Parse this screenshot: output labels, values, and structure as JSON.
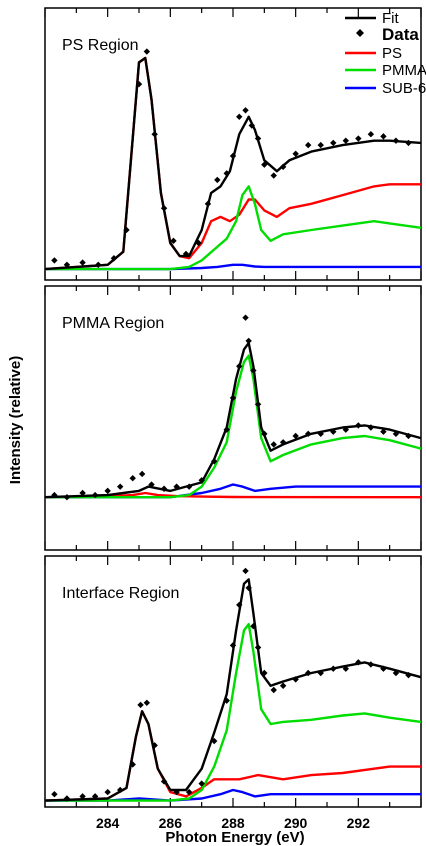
{
  "chart_data": {
    "type": "line",
    "xlabel": "Photon Energy (eV)",
    "ylabel": "Intensity (relative)",
    "xlim": [
      282,
      294
    ],
    "xticks": [
      284,
      286,
      288,
      290,
      292
    ],
    "legend": {
      "placement": "top-right",
      "entries": [
        {
          "name": "Fit",
          "color": "#000000",
          "style": "line"
        },
        {
          "name": "Data",
          "color": "#000000",
          "style": "marker"
        },
        {
          "name": "PS",
          "color": "#ff0000",
          "style": "line"
        },
        {
          "name": "PMMA",
          "color": "#00dd00",
          "style": "line"
        },
        {
          "name": "SUB-6",
          "color": "#0000ff",
          "style": "line"
        }
      ]
    },
    "panels": [
      {
        "title": "PS Region",
        "ylim": [
          -0.05,
          1.2
        ],
        "series": [
          {
            "name": "Fit",
            "color": "#000000",
            "x": [
              282,
              283,
              284,
              284.5,
              284.8,
              285,
              285.2,
              285.4,
              285.7,
              286,
              286.3,
              286.6,
              287,
              287.3,
              287.6,
              287.9,
              288.2,
              288.5,
              288.7,
              289,
              289.4,
              289.8,
              290.5,
              291.5,
              292.5,
              293,
              294
            ],
            "y": [
              0,
              0.01,
              0.02,
              0.08,
              0.6,
              0.95,
              0.97,
              0.78,
              0.35,
              0.12,
              0.06,
              0.06,
              0.18,
              0.35,
              0.38,
              0.45,
              0.62,
              0.7,
              0.64,
              0.5,
              0.45,
              0.5,
              0.54,
              0.57,
              0.59,
              0.59,
              0.58
            ]
          },
          {
            "name": "PS",
            "color": "#ff0000",
            "x": [
              282,
              283,
              284,
              284.5,
              284.8,
              285,
              285.2,
              285.4,
              285.7,
              286,
              286.3,
              286.6,
              287,
              287.3,
              287.6,
              287.9,
              288.2,
              288.5,
              288.7,
              289,
              289.4,
              289.8,
              290.5,
              291.5,
              292.5,
              293,
              294
            ],
            "y": [
              0,
              0.01,
              0.02,
              0.08,
              0.6,
              0.95,
              0.97,
              0.78,
              0.35,
              0.12,
              0.06,
              0.05,
              0.12,
              0.22,
              0.24,
              0.22,
              0.25,
              0.32,
              0.32,
              0.27,
              0.24,
              0.28,
              0.3,
              0.34,
              0.38,
              0.39,
              0.39
            ]
          },
          {
            "name": "PMMA",
            "color": "#00dd00",
            "x": [
              282,
              286,
              286.6,
              287,
              287.4,
              287.8,
              288.1,
              288.3,
              288.5,
              288.7,
              288.9,
              289.2,
              289.6,
              290.5,
              291.5,
              292.5,
              293,
              294
            ],
            "y": [
              0,
              0,
              0.01,
              0.04,
              0.09,
              0.14,
              0.22,
              0.34,
              0.38,
              0.3,
              0.18,
              0.13,
              0.16,
              0.18,
              0.2,
              0.22,
              0.21,
              0.19
            ]
          },
          {
            "name": "SUB-6",
            "color": "#0000ff",
            "x": [
              282,
              286,
              287,
              287.5,
              288,
              288.3,
              288.7,
              289,
              290,
              292,
              294
            ],
            "y": [
              0,
              0,
              0.005,
              0.01,
              0.02,
              0.02,
              0.012,
              0.01,
              0.01,
              0.01,
              0.01
            ]
          },
          {
            "name": "Data",
            "color": "#000000",
            "style": "marker",
            "x": [
              282.3,
              282.7,
              283.2,
              283.7,
              284.2,
              284.6,
              285.0,
              285.25,
              285.5,
              285.8,
              286.1,
              286.5,
              286.9,
              287.2,
              287.5,
              287.8,
              288.0,
              288.2,
              288.4,
              288.6,
              288.8,
              289.0,
              289.3,
              289.6,
              290.0,
              290.4,
              290.8,
              291.2,
              291.6,
              292.0,
              292.4,
              292.8,
              293.2,
              293.6
            ],
            "y": [
              0.04,
              0.02,
              0.03,
              0.02,
              0.05,
              0.18,
              0.85,
              1.0,
              0.62,
              0.28,
              0.13,
              0.07,
              0.12,
              0.3,
              0.41,
              0.44,
              0.52,
              0.7,
              0.73,
              0.66,
              0.6,
              0.48,
              0.43,
              0.47,
              0.53,
              0.57,
              0.57,
              0.58,
              0.59,
              0.6,
              0.62,
              0.61,
              0.59,
              0.58
            ]
          }
        ]
      },
      {
        "title": "PMMA Region",
        "ylim": [
          -0.25,
          1.0
        ],
        "series": [
          {
            "name": "Fit",
            "color": "#000000",
            "x": [
              282,
              284,
              285,
              285.3,
              286,
              287,
              287.4,
              287.8,
              288.1,
              288.35,
              288.5,
              288.65,
              288.9,
              289.2,
              289.6,
              290.5,
              291.5,
              292.2,
              293,
              294
            ],
            "y": [
              0,
              0.01,
              0.03,
              0.05,
              0.03,
              0.07,
              0.18,
              0.33,
              0.56,
              0.7,
              0.73,
              0.62,
              0.33,
              0.22,
              0.25,
              0.3,
              0.33,
              0.34,
              0.32,
              0.28
            ]
          },
          {
            "name": "PS",
            "color": "#ff0000",
            "x": [
              282,
              284,
              284.8,
              285.2,
              285.6,
              286.2,
              287,
              288,
              294
            ],
            "y": [
              0,
              0.005,
              0.01,
              0.02,
              0.01,
              0.005,
              0.003,
              0.001,
              0
            ]
          },
          {
            "name": "PMMA",
            "color": "#00dd00",
            "x": [
              282,
              286,
              286.6,
              287,
              287.4,
              287.8,
              288.1,
              288.35,
              288.5,
              288.65,
              288.9,
              289.2,
              289.6,
              290.5,
              291.5,
              292.2,
              293,
              294
            ],
            "y": [
              0,
              0,
              0.01,
              0.05,
              0.14,
              0.26,
              0.5,
              0.64,
              0.67,
              0.56,
              0.28,
              0.17,
              0.2,
              0.25,
              0.28,
              0.29,
              0.27,
              0.23
            ]
          },
          {
            "name": "SUB-6",
            "color": "#0000ff",
            "x": [
              282,
              286,
              287,
              287.6,
              288,
              288.3,
              288.7,
              289.2,
              290,
              292,
              294
            ],
            "y": [
              0,
              0,
              0.02,
              0.04,
              0.06,
              0.05,
              0.03,
              0.04,
              0.05,
              0.05,
              0.05
            ]
          },
          {
            "name": "Data",
            "color": "#000000",
            "style": "marker",
            "x": [
              282.3,
              282.7,
              283.2,
              283.6,
              284.0,
              284.4,
              284.8,
              285.1,
              285.4,
              285.8,
              286.2,
              286.6,
              287.0,
              287.4,
              287.8,
              288.0,
              288.2,
              288.4,
              288.5,
              288.65,
              288.8,
              289.0,
              289.3,
              289.6,
              290.0,
              290.4,
              290.8,
              291.2,
              291.6,
              292.0,
              292.4,
              292.8,
              293.2,
              293.6
            ],
            "y": [
              0.01,
              0.0,
              0.02,
              0.01,
              0.03,
              0.05,
              0.09,
              0.11,
              0.06,
              0.04,
              0.05,
              0.05,
              0.08,
              0.17,
              0.32,
              0.47,
              0.62,
              0.85,
              0.74,
              0.6,
              0.44,
              0.3,
              0.25,
              0.26,
              0.29,
              0.3,
              0.3,
              0.31,
              0.32,
              0.34,
              0.33,
              0.31,
              0.3,
              0.29
            ]
          }
        ]
      },
      {
        "title": "Interface Region",
        "ylim": [
          -0.03,
          1.15
        ],
        "series": [
          {
            "name": "Fit",
            "color": "#000000",
            "x": [
              282,
              284,
              284.6,
              284.9,
              285.1,
              285.3,
              285.6,
              286,
              286.5,
              287,
              287.4,
              287.8,
              288.1,
              288.35,
              288.5,
              288.65,
              288.9,
              289.2,
              289.6,
              290.5,
              291.5,
              292.2,
              293,
              294
            ],
            "y": [
              0,
              0.01,
              0.06,
              0.3,
              0.42,
              0.36,
              0.15,
              0.05,
              0.05,
              0.15,
              0.32,
              0.5,
              0.8,
              1.02,
              1.04,
              0.88,
              0.6,
              0.54,
              0.56,
              0.6,
              0.63,
              0.65,
              0.62,
              0.58
            ]
          },
          {
            "name": "PS",
            "color": "#ff0000",
            "x": [
              282,
              284,
              284.6,
              284.9,
              285.1,
              285.3,
              285.6,
              286,
              286.5,
              287,
              287.4,
              287.8,
              288.2,
              288.8,
              289.2,
              289.6,
              290.5,
              291.5,
              292.5,
              293,
              294
            ],
            "y": [
              0,
              0.01,
              0.06,
              0.3,
              0.42,
              0.36,
              0.15,
              0.04,
              0.02,
              0.06,
              0.1,
              0.1,
              0.1,
              0.12,
              0.11,
              0.1,
              0.12,
              0.13,
              0.15,
              0.16,
              0.16
            ]
          },
          {
            "name": "PMMA",
            "color": "#00dd00",
            "x": [
              282,
              286,
              286.6,
              287,
              287.4,
              287.8,
              288.1,
              288.35,
              288.5,
              288.65,
              288.9,
              289.2,
              289.6,
              290.5,
              291.5,
              292.2,
              293,
              294
            ],
            "y": [
              0,
              0,
              0.01,
              0.05,
              0.16,
              0.33,
              0.6,
              0.8,
              0.83,
              0.7,
              0.43,
              0.36,
              0.37,
              0.38,
              0.4,
              0.41,
              0.39,
              0.37
            ]
          },
          {
            "name": "SUB-6",
            "color": "#0000ff",
            "x": [
              282,
              284,
              285,
              286,
              287,
              287.6,
              288,
              288.3,
              288.7,
              289.2,
              290,
              292,
              294
            ],
            "y": [
              0,
              0,
              0.01,
              0.0,
              0.01,
              0.03,
              0.05,
              0.04,
              0.02,
              0.03,
              0.03,
              0.03,
              0.03
            ]
          },
          {
            "name": "Data",
            "color": "#000000",
            "style": "marker",
            "x": [
              282.3,
              282.7,
              283.2,
              283.6,
              284.0,
              284.4,
              284.8,
              285.05,
              285.25,
              285.5,
              285.8,
              286.2,
              286.6,
              287.0,
              287.4,
              287.8,
              288.0,
              288.2,
              288.4,
              288.5,
              288.65,
              288.8,
              289.0,
              289.3,
              289.6,
              290.0,
              290.4,
              290.8,
              291.2,
              291.6,
              292.0,
              292.4,
              292.8,
              293.2,
              293.6
            ],
            "y": [
              0.03,
              0.01,
              0.02,
              0.02,
              0.04,
              0.05,
              0.17,
              0.45,
              0.46,
              0.26,
              0.09,
              0.04,
              0.04,
              0.08,
              0.28,
              0.47,
              0.73,
              0.92,
              1.08,
              1.0,
              0.82,
              0.72,
              0.6,
              0.52,
              0.54,
              0.57,
              0.6,
              0.6,
              0.62,
              0.62,
              0.65,
              0.64,
              0.62,
              0.6,
              0.59
            ]
          }
        ]
      }
    ]
  }
}
